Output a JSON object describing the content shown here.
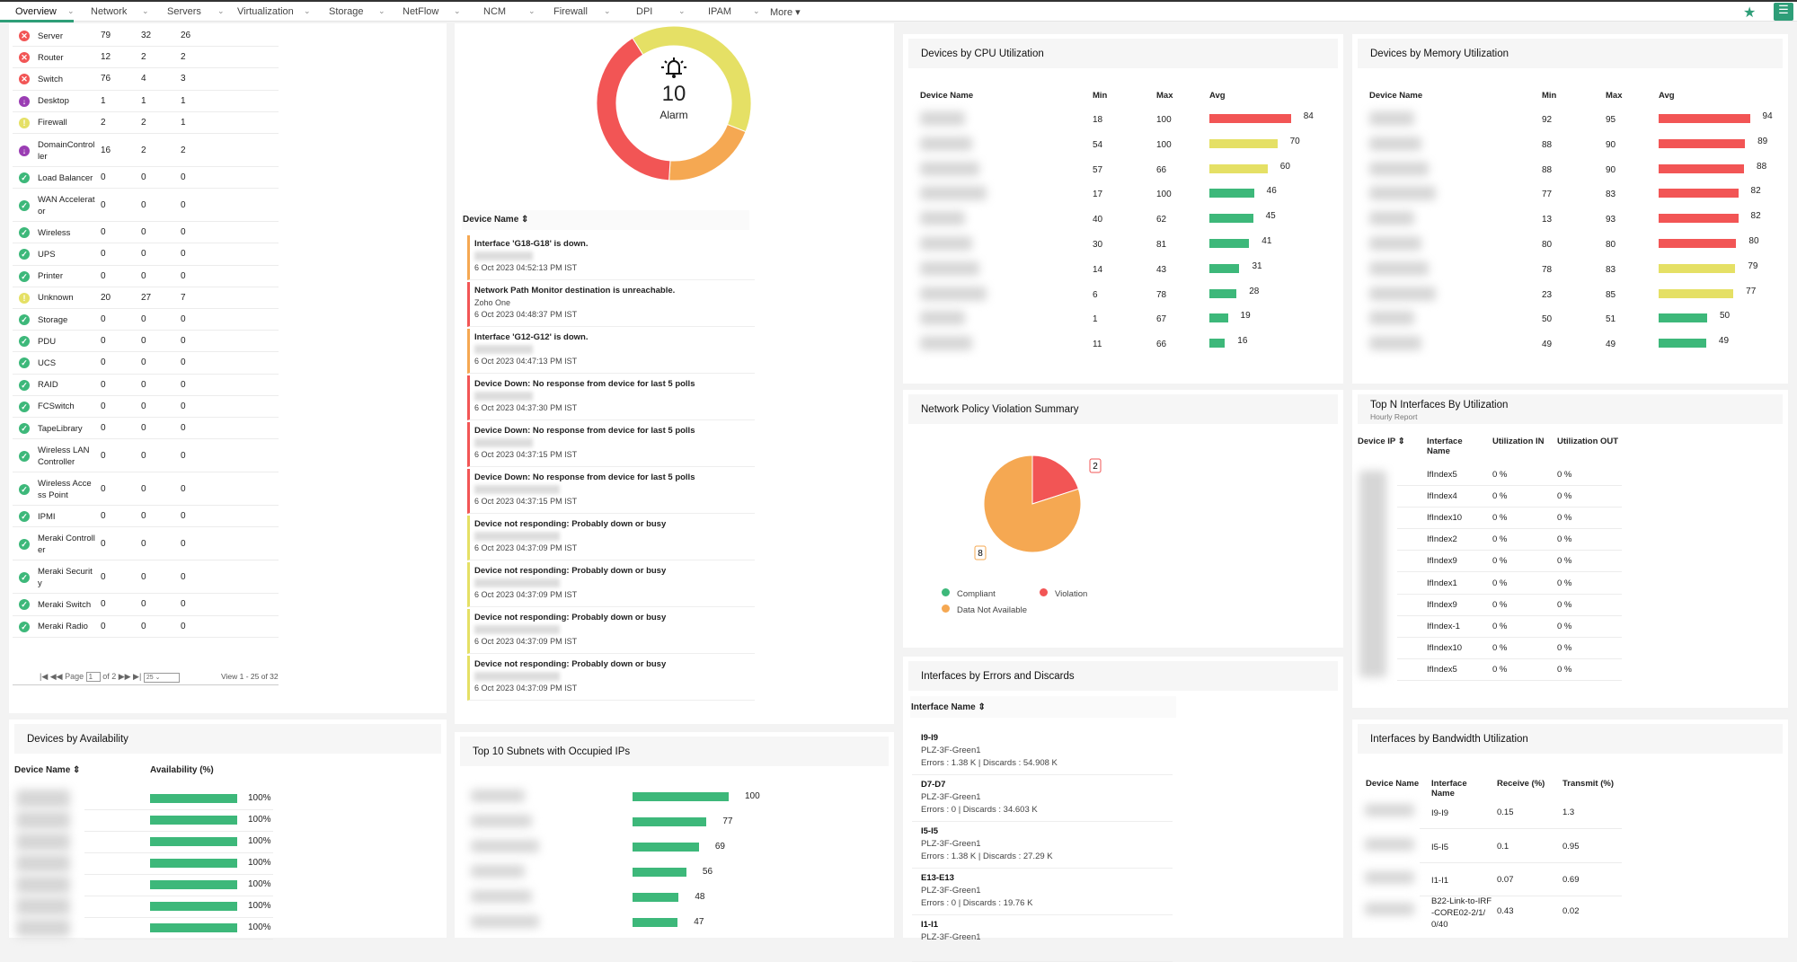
{
  "nav": {
    "tabs": [
      "Overview",
      "Network",
      "Servers",
      "Virtualization",
      "Storage",
      "NetFlow",
      "NCM",
      "Firewall",
      "DPI",
      "IPAM"
    ],
    "more": "More ▾",
    "active": "Overview",
    "star_icon": "star-icon",
    "menu_icon": "menu-list-icon"
  },
  "colors": {
    "red": "#f25555",
    "yellow": "#e5e065",
    "orange": "#f5a852",
    "green": "#3db87a",
    "purple": "#9a3db3",
    "accent": "#2e9e78"
  },
  "device_status": {
    "rows": [
      {
        "name": "Server",
        "status": "critical",
        "v": [
          79,
          32,
          26
        ]
      },
      {
        "name": "Router",
        "status": "critical",
        "v": [
          12,
          2,
          2
        ]
      },
      {
        "name": "Switch",
        "status": "critical",
        "v": [
          76,
          4,
          3
        ]
      },
      {
        "name": "Desktop",
        "status": "down",
        "v": [
          1,
          1,
          1
        ]
      },
      {
        "name": "Firewall",
        "status": "warning",
        "v": [
          2,
          2,
          1
        ]
      },
      {
        "name": "DomainController",
        "status": "down",
        "v": [
          16,
          2,
          2
        ]
      },
      {
        "name": "Load Balancer",
        "status": "clear",
        "v": [
          0,
          0,
          0
        ]
      },
      {
        "name": "WAN Accelerator",
        "status": "clear",
        "v": [
          0,
          0,
          0
        ]
      },
      {
        "name": "Wireless",
        "status": "clear",
        "v": [
          0,
          0,
          0
        ]
      },
      {
        "name": "UPS",
        "status": "clear",
        "v": [
          0,
          0,
          0
        ]
      },
      {
        "name": "Printer",
        "status": "clear",
        "v": [
          0,
          0,
          0
        ]
      },
      {
        "name": "Unknown",
        "status": "warning",
        "v": [
          20,
          27,
          7
        ]
      },
      {
        "name": "Storage",
        "status": "clear",
        "v": [
          0,
          0,
          0
        ]
      },
      {
        "name": "PDU",
        "status": "clear",
        "v": [
          0,
          0,
          0
        ]
      },
      {
        "name": "UCS",
        "status": "clear",
        "v": [
          0,
          0,
          0
        ]
      },
      {
        "name": "RAID",
        "status": "clear",
        "v": [
          0,
          0,
          0
        ]
      },
      {
        "name": "FCSwitch",
        "status": "clear",
        "v": [
          0,
          0,
          0
        ]
      },
      {
        "name": "TapeLibrary",
        "status": "clear",
        "v": [
          0,
          0,
          0
        ]
      },
      {
        "name": "Wireless LAN Controller",
        "status": "clear",
        "v": [
          0,
          0,
          0
        ]
      },
      {
        "name": "Wireless Access Point",
        "status": "clear",
        "v": [
          0,
          0,
          0
        ]
      },
      {
        "name": "IPMI",
        "status": "clear",
        "v": [
          0,
          0,
          0
        ]
      },
      {
        "name": "Meraki Controller",
        "status": "clear",
        "v": [
          0,
          0,
          0
        ]
      },
      {
        "name": "Meraki Security",
        "status": "clear",
        "v": [
          0,
          0,
          0
        ]
      },
      {
        "name": "Meraki Switch",
        "status": "clear",
        "v": [
          0,
          0,
          0
        ]
      },
      {
        "name": "Meraki Radio",
        "status": "clear",
        "v": [
          0,
          0,
          0
        ]
      }
    ],
    "pager": {
      "page_label": "Page",
      "page": "1",
      "of": "of 2",
      "per_page": "25",
      "view": "View 1 - 25 of 32"
    }
  },
  "alarms": {
    "count": "10",
    "label": "Alarm",
    "segments": [
      {
        "severity": "critical",
        "count": 4,
        "color": "#f25555"
      },
      {
        "severity": "warning",
        "count": 4,
        "color": "#e5e065"
      },
      {
        "severity": "trouble",
        "count": 2,
        "color": "#f5a852"
      }
    ],
    "column": "Device Name ⇕",
    "items": [
      {
        "title": "Interface 'G18-G18' is down.",
        "source": "",
        "time": "6 Oct 2023 04:52:13 PM IST",
        "severity": "trouble"
      },
      {
        "title": "Network Path Monitor destination is unreachable.",
        "source": "Zoho One",
        "time": "6 Oct 2023 04:48:37 PM IST",
        "severity": "critical"
      },
      {
        "title": "Interface 'G12-G12' is down.",
        "source": "",
        "time": "6 Oct 2023 04:47:13 PM IST",
        "severity": "trouble"
      },
      {
        "title": "Device Down: No response from device for last 5 polls",
        "source": "",
        "time": "6 Oct 2023 04:37:30 PM IST",
        "severity": "critical"
      },
      {
        "title": "Device Down: No response from device for last 5 polls",
        "source": "",
        "time": "6 Oct 2023 04:37:15 PM IST",
        "severity": "critical"
      },
      {
        "title": "Device Down: No response from device for last 5 polls",
        "source": "",
        "time": "6 Oct 2023 04:37:15 PM IST",
        "severity": "critical"
      },
      {
        "title": "Device not responding: Probably down or busy",
        "source": "",
        "time": "6 Oct 2023 04:37:09 PM IST",
        "severity": "warning"
      },
      {
        "title": "Device not responding: Probably down or busy",
        "source": "",
        "time": "6 Oct 2023 04:37:09 PM IST",
        "severity": "warning"
      },
      {
        "title": "Device not responding: Probably down or busy",
        "source": "",
        "time": "6 Oct 2023 04:37:09 PM IST",
        "severity": "warning"
      },
      {
        "title": "Device not responding: Probably down or busy",
        "source": "",
        "time": "6 Oct 2023 04:37:09 PM IST",
        "severity": "warning"
      }
    ]
  },
  "cpu": {
    "title": "Devices by CPU Utilization",
    "columns": [
      "Device Name",
      "Min",
      "Max",
      "Avg"
    ],
    "rows": [
      [
        18,
        100,
        84
      ],
      [
        54,
        100,
        70
      ],
      [
        57,
        66,
        60
      ],
      [
        17,
        100,
        46
      ],
      [
        40,
        62,
        45
      ],
      [
        30,
        81,
        41
      ],
      [
        14,
        43,
        31
      ],
      [
        6,
        78,
        28
      ],
      [
        1,
        67,
        19
      ],
      [
        11,
        66,
        16
      ]
    ]
  },
  "memory": {
    "title": "Devices by Memory Utilization",
    "columns": [
      "Device Name",
      "Min",
      "Max",
      "Avg"
    ],
    "rows": [
      [
        92,
        95,
        94
      ],
      [
        88,
        90,
        89
      ],
      [
        88,
        90,
        88
      ],
      [
        77,
        83,
        82
      ],
      [
        13,
        93,
        82
      ],
      [
        80,
        80,
        80
      ],
      [
        78,
        83,
        79
      ],
      [
        23,
        85,
        77
      ],
      [
        50,
        51,
        50
      ],
      [
        49,
        49,
        49
      ]
    ]
  },
  "policy": {
    "title": "Network Policy Violation Summary",
    "chart_data": {
      "type": "pie",
      "slices": [
        {
          "label": "Compliant",
          "value": 0,
          "color": "#3db87a"
        },
        {
          "label": "Violation",
          "value": 2,
          "color": "#f25555"
        },
        {
          "label": "Data Not Available",
          "value": 8,
          "color": "#f5a852"
        }
      ],
      "legend": "bottom"
    }
  },
  "topn": {
    "title": "Top N Interfaces By Utilization",
    "subtitle": "Hourly Report",
    "columns": [
      "Device IP ⇕",
      "Interface Name",
      "Utilization IN",
      "Utilization OUT"
    ],
    "rows": [
      [
        "IfIndex5",
        "0 %",
        "0 %"
      ],
      [
        "IfIndex4",
        "0 %",
        "0 %"
      ],
      [
        "IfIndex10",
        "0 %",
        "0 %"
      ],
      [
        "IfIndex2",
        "0 %",
        "0 %"
      ],
      [
        "IfIndex9",
        "0 %",
        "0 %"
      ],
      [
        "IfIndex1",
        "0 %",
        "0 %"
      ],
      [
        "IfIndex9",
        "0 %",
        "0 %"
      ],
      [
        "IfIndex-1",
        "0 %",
        "0 %"
      ],
      [
        "IfIndex10",
        "0 %",
        "0 %"
      ],
      [
        "IfIndex5",
        "0 %",
        "0 %"
      ]
    ]
  },
  "availability": {
    "title": "Devices by Availability",
    "columns": [
      "Device Name ⇕",
      "Availability (%)"
    ],
    "rows": [
      100,
      100,
      100,
      100,
      100,
      100,
      100
    ],
    "suffix": "%"
  },
  "subnets": {
    "title": "Top 10 Subnets with Occupied IPs",
    "values": [
      100,
      77,
      69,
      56,
      48,
      47
    ]
  },
  "errors": {
    "title": "Interfaces by Errors and Discards",
    "column": "Interface Name ⇕",
    "items": [
      {
        "name": "I9-I9",
        "device": "PLZ-3F-Green1",
        "stats": "Errors : 1.38 K | Discards : 54.908 K"
      },
      {
        "name": "D7-D7",
        "device": "PLZ-3F-Green1",
        "stats": "Errors : 0 | Discards : 34.603 K"
      },
      {
        "name": "I5-I5",
        "device": "PLZ-3F-Green1",
        "stats": "Errors : 1.38 K | Discards : 27.29 K"
      },
      {
        "name": "E13-E13",
        "device": "PLZ-3F-Green1",
        "stats": "Errors : 0 | Discards : 19.76 K"
      },
      {
        "name": "I1-I1",
        "device": "PLZ-3F-Green1",
        "stats": ""
      }
    ]
  },
  "bandwidth": {
    "title": "Interfaces by Bandwidth Utilization",
    "columns": [
      "Device Name",
      "Interface Name",
      "Receive (%)",
      "Transmit (%)"
    ],
    "rows": [
      [
        "I9-I9",
        "0.15",
        "1.3"
      ],
      [
        "I5-I5",
        "0.1",
        "0.95"
      ],
      [
        "I1-I1",
        "0.07",
        "0.69"
      ],
      [
        "B22-Link-to-IRF-CORE02-2/1/0/40",
        "0.43",
        "0.02"
      ]
    ]
  }
}
